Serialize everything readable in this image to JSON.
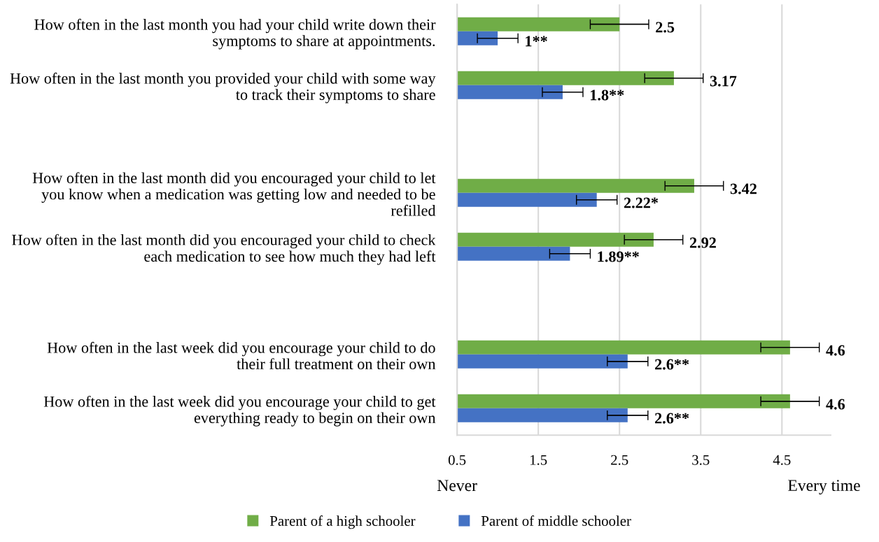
{
  "chart_data": {
    "type": "bar",
    "orientation": "horizontal",
    "categories": [
      "How often in the last month you had your child write down their symptoms to share at appointments.",
      "How often in the last month you provided your child with some way to track their symptoms to share",
      null,
      "How often in the last month did you encouraged your child to let you know when a medication was getting low and needed to be refilled",
      "How often in the last month did you encouraged your child to check each medication to see how much they had left",
      null,
      "How often in the last week did you encourage your child to do their full treatment on their own",
      "How often in the last week did you encourage your child to get everything ready to begin on their own"
    ],
    "series": [
      {
        "name": "Parent of a high schooler",
        "color": "#70ad47",
        "values": [
          2.5,
          3.17,
          null,
          3.42,
          2.92,
          null,
          4.6,
          4.6
        ],
        "errors": [
          0.36,
          0.36,
          null,
          0.36,
          0.36,
          null,
          0.36,
          0.36
        ],
        "value_labels": [
          "2.5",
          "3.17",
          null,
          "3.42",
          "2.92",
          null,
          "4.6",
          "4.6"
        ]
      },
      {
        "name": "Parent of middle schooler",
        "color": "#4472c4",
        "values": [
          1,
          1.8,
          null,
          2.22,
          1.89,
          null,
          2.6,
          2.6
        ],
        "errors": [
          0.25,
          0.25,
          null,
          0.25,
          0.25,
          null,
          0.25,
          0.25
        ],
        "value_labels": [
          "1**",
          "1.8**",
          null,
          "2.22*",
          "1.89**",
          null,
          "2.6**",
          "2.6**"
        ]
      }
    ],
    "xlim": [
      0.5,
      5.1
    ],
    "xticks": [
      0.5,
      1.5,
      2.5,
      3.5,
      4.5
    ],
    "grid": "x",
    "legend": "bottom",
    "annotations": [
      "Never",
      "Every time"
    ]
  }
}
